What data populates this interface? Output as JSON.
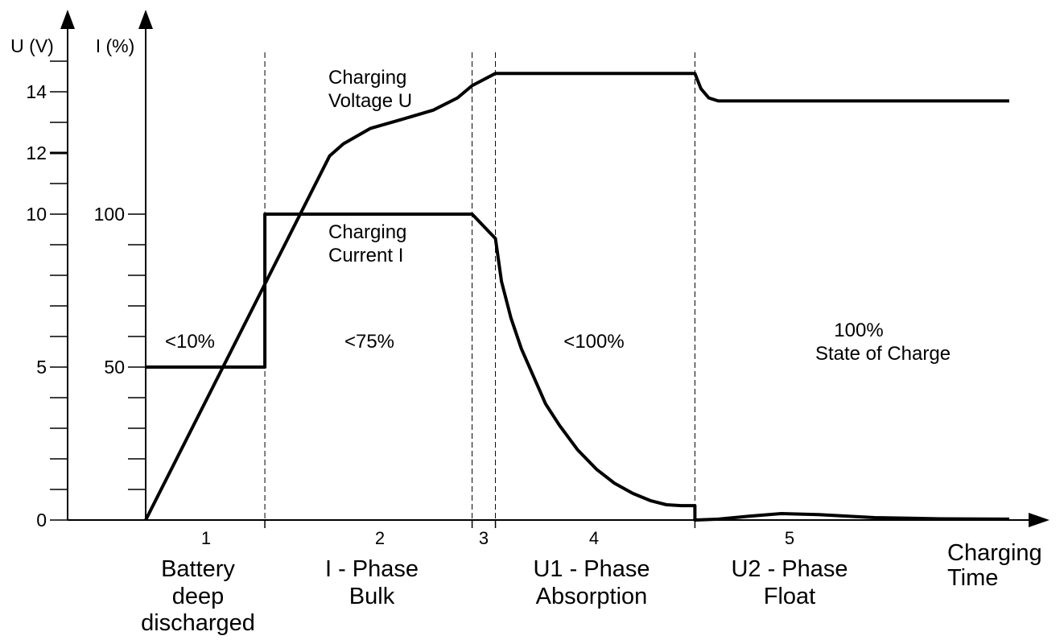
{
  "chart_data": {
    "type": "line",
    "title": "",
    "xlabel": "Charging Time",
    "ylabel_left": "U (V)",
    "ylabel_right": "I (%)",
    "u_ticks": [
      0,
      5,
      10,
      12,
      14
    ],
    "u_range": [
      0,
      15
    ],
    "i_ticks": [
      50,
      100
    ],
    "i_range": [
      0,
      100
    ],
    "x_range": [
      0,
      100
    ],
    "x_unit": "arbitrary time",
    "grid": false,
    "phase_boundaries": [
      13.8,
      37.8,
      40.5,
      63.6
    ],
    "phases": [
      {
        "number": "1",
        "name": [
          "Battery",
          "deep",
          "discharged"
        ],
        "state_of_charge": "<10%"
      },
      {
        "number": "2",
        "name": [
          "I - Phase",
          "Bulk"
        ],
        "state_of_charge": "<75%"
      },
      {
        "number": "3",
        "name": [],
        "state_of_charge": ""
      },
      {
        "number": "4",
        "name": [
          "U1 - Phase",
          "Absorption"
        ],
        "state_of_charge": "<100%"
      },
      {
        "number": "5",
        "name": [
          "U2 - Phase",
          "Float"
        ],
        "state_of_charge": "100%",
        "state_of_charge_note": "State of Charge"
      }
    ],
    "series": [
      {
        "name": "Charging Voltage U",
        "label_lines": [
          "Charging",
          "Voltage U"
        ],
        "axis": "U",
        "x": [
          0,
          21.3,
          22.9,
          26.0,
          29.7,
          33.3,
          36.1,
          37.8,
          40.5,
          63.6,
          64.3,
          65.2,
          66.3,
          100
        ],
        "y": [
          0,
          11.9,
          12.3,
          12.8,
          13.1,
          13.4,
          13.8,
          14.2,
          14.6,
          14.6,
          14.1,
          13.8,
          13.7,
          13.7
        ]
      },
      {
        "name": "Charging Current I",
        "label_lines": [
          "Charging",
          "Current  I"
        ],
        "axis": "I",
        "x": [
          0,
          13.8,
          13.8,
          37.8,
          40.5,
          41.2,
          42.3,
          43.5,
          44.9,
          46.3,
          47.9,
          50.0,
          52.2,
          54.3,
          56.4,
          58.5,
          60.3,
          62.0,
          63.6,
          63.6,
          66.3,
          70.0,
          73.6,
          77.9,
          84.4,
          92.0,
          100
        ],
        "y": [
          50,
          50,
          100,
          100,
          92,
          78,
          66,
          56,
          47,
          38,
          31,
          23,
          16.6,
          12,
          8.7,
          6.3,
          5.0,
          4.7,
          4.7,
          0,
          0.3,
          1.3,
          2.1,
          1.8,
          0.8,
          0.4,
          0.3
        ]
      }
    ]
  }
}
